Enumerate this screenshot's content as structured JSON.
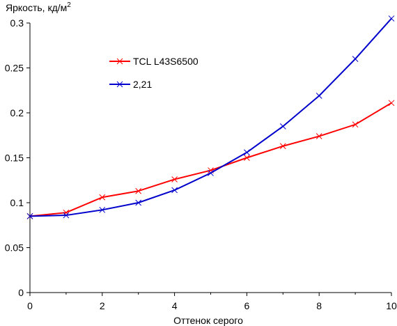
{
  "chart_data": {
    "type": "line",
    "title": "",
    "ylabel": "Яркость, кд/м",
    "ylabel_sup": "2",
    "xlabel": "Оттенок серого",
    "xlim": [
      0,
      10
    ],
    "ylim": [
      0,
      0.3
    ],
    "x_ticks": [
      "0",
      "2",
      "4",
      "6",
      "8",
      "10"
    ],
    "y_ticks": [
      "0",
      "0.05",
      "0.1",
      "0.15",
      "0.2",
      "0.25",
      "0.3"
    ],
    "grid": false,
    "legend_position": "upper-left",
    "x": [
      0,
      1,
      2,
      3,
      4,
      5,
      6,
      7,
      8,
      9,
      10
    ],
    "series": [
      {
        "name": "TCL L43S6500",
        "color": "#ff0000",
        "marker": "x",
        "values": [
          0.085,
          0.089,
          0.106,
          0.113,
          0.126,
          0.136,
          0.15,
          0.163,
          0.174,
          0.187,
          0.211
        ]
      },
      {
        "name": "2,21",
        "color": "#0000cc",
        "marker": "x",
        "values": [
          0.085,
          0.086,
          0.092,
          0.1,
          0.114,
          0.133,
          0.156,
          0.185,
          0.219,
          0.26,
          0.305
        ]
      }
    ]
  }
}
